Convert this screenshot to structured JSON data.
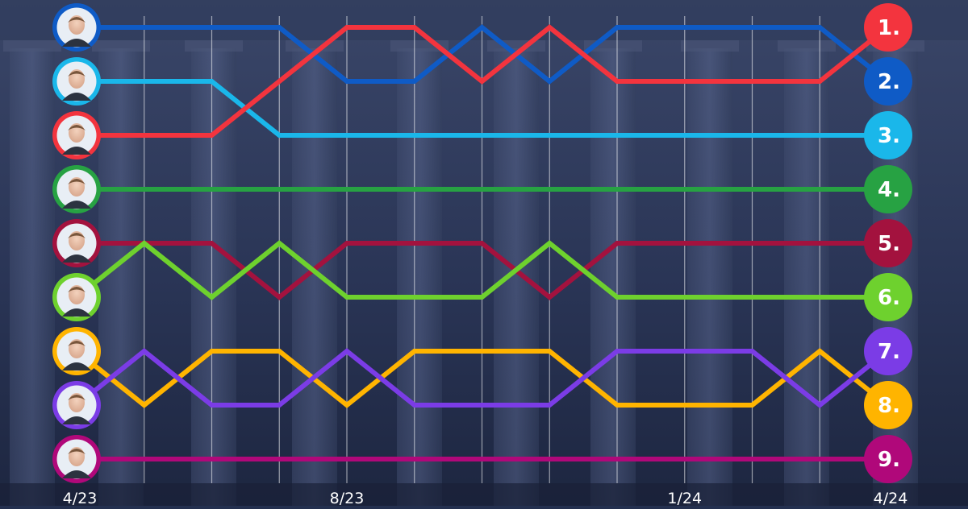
{
  "chart_data": {
    "type": "line",
    "title": "",
    "xlabel": "",
    "ylabel": "",
    "x": [
      "4/23",
      "5/23",
      "6/23",
      "7/23",
      "8/23",
      "9/23",
      "10/23",
      "11/23",
      "12/23",
      "1/24",
      "2/24",
      "3/24",
      "4/24"
    ],
    "x_tick_labels": [
      {
        "index": 0,
        "label": "4/23"
      },
      {
        "index": 4,
        "label": "8/23"
      },
      {
        "index": 9,
        "label": "1/24"
      },
      {
        "index": 12,
        "label": "4/24"
      }
    ],
    "y_axis": "rank (1 = top)",
    "ylim": [
      1,
      9
    ],
    "grid": "vertical lines",
    "series": [
      {
        "color": "#0f5bc6",
        "ranks": [
          1,
          1,
          1,
          1,
          2,
          2,
          1,
          2,
          1,
          1,
          1,
          1,
          2
        ]
      },
      {
        "color": "#1ab7ea",
        "ranks": [
          2,
          2,
          2,
          3,
          3,
          3,
          3,
          3,
          3,
          3,
          3,
          3,
          3
        ]
      },
      {
        "color": "#f3343e",
        "ranks": [
          3,
          3,
          3,
          2,
          1,
          1,
          2,
          1,
          2,
          2,
          2,
          2,
          1
        ]
      },
      {
        "color": "#27a243",
        "ranks": [
          4,
          4,
          4,
          4,
          4,
          4,
          4,
          4,
          4,
          4,
          4,
          4,
          4
        ]
      },
      {
        "color": "#a3123e",
        "ranks": [
          5,
          5,
          5,
          6,
          5,
          5,
          5,
          6,
          5,
          5,
          5,
          5,
          5
        ]
      },
      {
        "color": "#6ed12e",
        "ranks": [
          6,
          5,
          6,
          5,
          6,
          6,
          6,
          5,
          6,
          6,
          6,
          6,
          6
        ]
      },
      {
        "color": "#ffb400",
        "ranks": [
          7,
          8,
          7,
          7,
          8,
          7,
          7,
          7,
          8,
          8,
          8,
          7,
          8
        ]
      },
      {
        "color": "#7b3ce6",
        "ranks": [
          8,
          7,
          8,
          8,
          7,
          8,
          8,
          8,
          7,
          7,
          7,
          8,
          7
        ]
      },
      {
        "color": "#b0087a",
        "ranks": [
          9,
          9,
          9,
          9,
          9,
          9,
          9,
          9,
          9,
          9,
          9,
          9,
          9
        ]
      }
    ],
    "end_rank_labels": [
      "1.",
      "2.",
      "3.",
      "4.",
      "5.",
      "6.",
      "7.",
      "8.",
      "9."
    ],
    "end_rank_colors": [
      "#f3343e",
      "#0f5bc6",
      "#1ab7ea",
      "#27a243",
      "#a3123e",
      "#6ed12e",
      "#7b3ce6",
      "#ffb400",
      "#b0087a"
    ]
  },
  "portraits": [
    {
      "name": "person-1-portrait",
      "color": "#0f5bc6"
    },
    {
      "name": "person-2-portrait",
      "color": "#1ab7ea"
    },
    {
      "name": "person-3-portrait",
      "color": "#f3343e"
    },
    {
      "name": "person-4-portrait",
      "color": "#27a243"
    },
    {
      "name": "person-5-portrait",
      "color": "#a3123e"
    },
    {
      "name": "person-6-portrait",
      "color": "#6ed12e"
    },
    {
      "name": "person-7-portrait",
      "color": "#ffb400"
    },
    {
      "name": "person-8-portrait",
      "color": "#7b3ce6"
    },
    {
      "name": "person-9-portrait",
      "color": "#b0087a"
    }
  ]
}
